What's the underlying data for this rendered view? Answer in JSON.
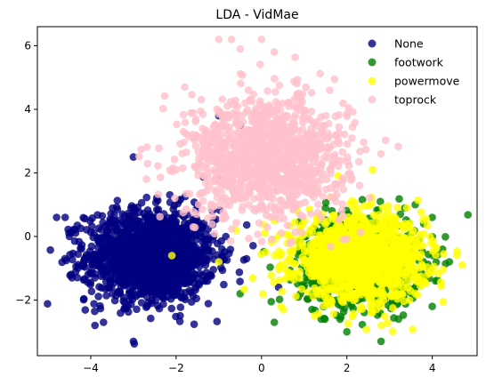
{
  "chart_data": {
    "type": "scatter",
    "title": "LDA - VidMae",
    "xlabel": "",
    "ylabel": "",
    "xlim": [
      -5.25,
      5.05
    ],
    "ylim": [
      -3.75,
      6.6
    ],
    "x_ticks": [
      -4,
      -2,
      0,
      2,
      4
    ],
    "y_ticks": [
      -2,
      0,
      2,
      4,
      6
    ],
    "grid": false,
    "legend_position": "top-right",
    "point_alpha": 0.8,
    "series": [
      {
        "name": "None",
        "color": "#000080",
        "cluster": {
          "center": [
            -2.6,
            -0.6
          ],
          "spread": [
            0.75,
            0.72
          ],
          "count": 1500
        },
        "points": [
          [
            -4.8,
            0.6
          ],
          [
            -4.6,
            0.6
          ],
          [
            -4.5,
            0.0
          ],
          [
            -3.9,
            -2.8
          ],
          [
            -3.7,
            -2.7
          ],
          [
            -3.0,
            -3.3
          ],
          [
            -3.0,
            2.5
          ],
          [
            -1.0,
            3.8
          ],
          [
            -0.5,
            3.5
          ],
          [
            0.5,
            3.7
          ],
          [
            -2.2,
            -0.6
          ],
          [
            -0.4,
            2.1
          ],
          [
            -1.0,
            1.8
          ],
          [
            0.4,
            -1.6
          ]
        ]
      },
      {
        "name": "footwork",
        "color": "#008000",
        "cluster": {
          "center": [
            2.3,
            -0.8
          ],
          "spread": [
            0.7,
            0.68
          ],
          "count": 900
        },
        "points": [
          [
            3.6,
            1.0
          ],
          [
            4.0,
            0.6
          ],
          [
            4.4,
            -0.8
          ],
          [
            4.0,
            -2.2
          ],
          [
            2.0,
            -3.0
          ],
          [
            2.8,
            -3.3
          ],
          [
            1.4,
            -2.6
          ],
          [
            0.3,
            -2.7
          ],
          [
            3.8,
            0.4
          ],
          [
            -0.5,
            -1.8
          ]
        ]
      },
      {
        "name": "powermove",
        "color": "#ffff00",
        "cluster": {
          "center": [
            2.3,
            -0.7
          ],
          "spread": [
            0.75,
            0.65
          ],
          "count": 1300
        },
        "points": [
          [
            -2.1,
            -0.6
          ],
          [
            4.7,
            -0.9
          ],
          [
            3.4,
            0.9
          ],
          [
            1.2,
            1.4
          ],
          [
            2.6,
            2.1
          ],
          [
            1.8,
            1.9
          ],
          [
            -1.0,
            -0.8
          ],
          [
            -0.6,
            0.2
          ],
          [
            0.1,
            -0.5
          ],
          [
            0.3,
            0.5
          ],
          [
            3.8,
            -1.4
          ]
        ]
      },
      {
        "name": "toprock",
        "color": "#ffc0cb",
        "cluster": {
          "center": [
            0.1,
            2.5
          ],
          "spread": [
            0.95,
            0.95
          ],
          "count": 1100
        },
        "points": [
          [
            0.0,
            6.2
          ],
          [
            -1.0,
            6.2
          ],
          [
            -0.7,
            6.2
          ],
          [
            -0.5,
            5.9
          ],
          [
            0.3,
            5.8
          ],
          [
            -1.8,
            4.7
          ],
          [
            1.6,
            4.6
          ],
          [
            2.8,
            2.6
          ],
          [
            -1.6,
            0.3
          ],
          [
            -2.0,
            2.1
          ],
          [
            1.4,
            0.6
          ],
          [
            2.3,
            1.6
          ]
        ]
      }
    ]
  }
}
